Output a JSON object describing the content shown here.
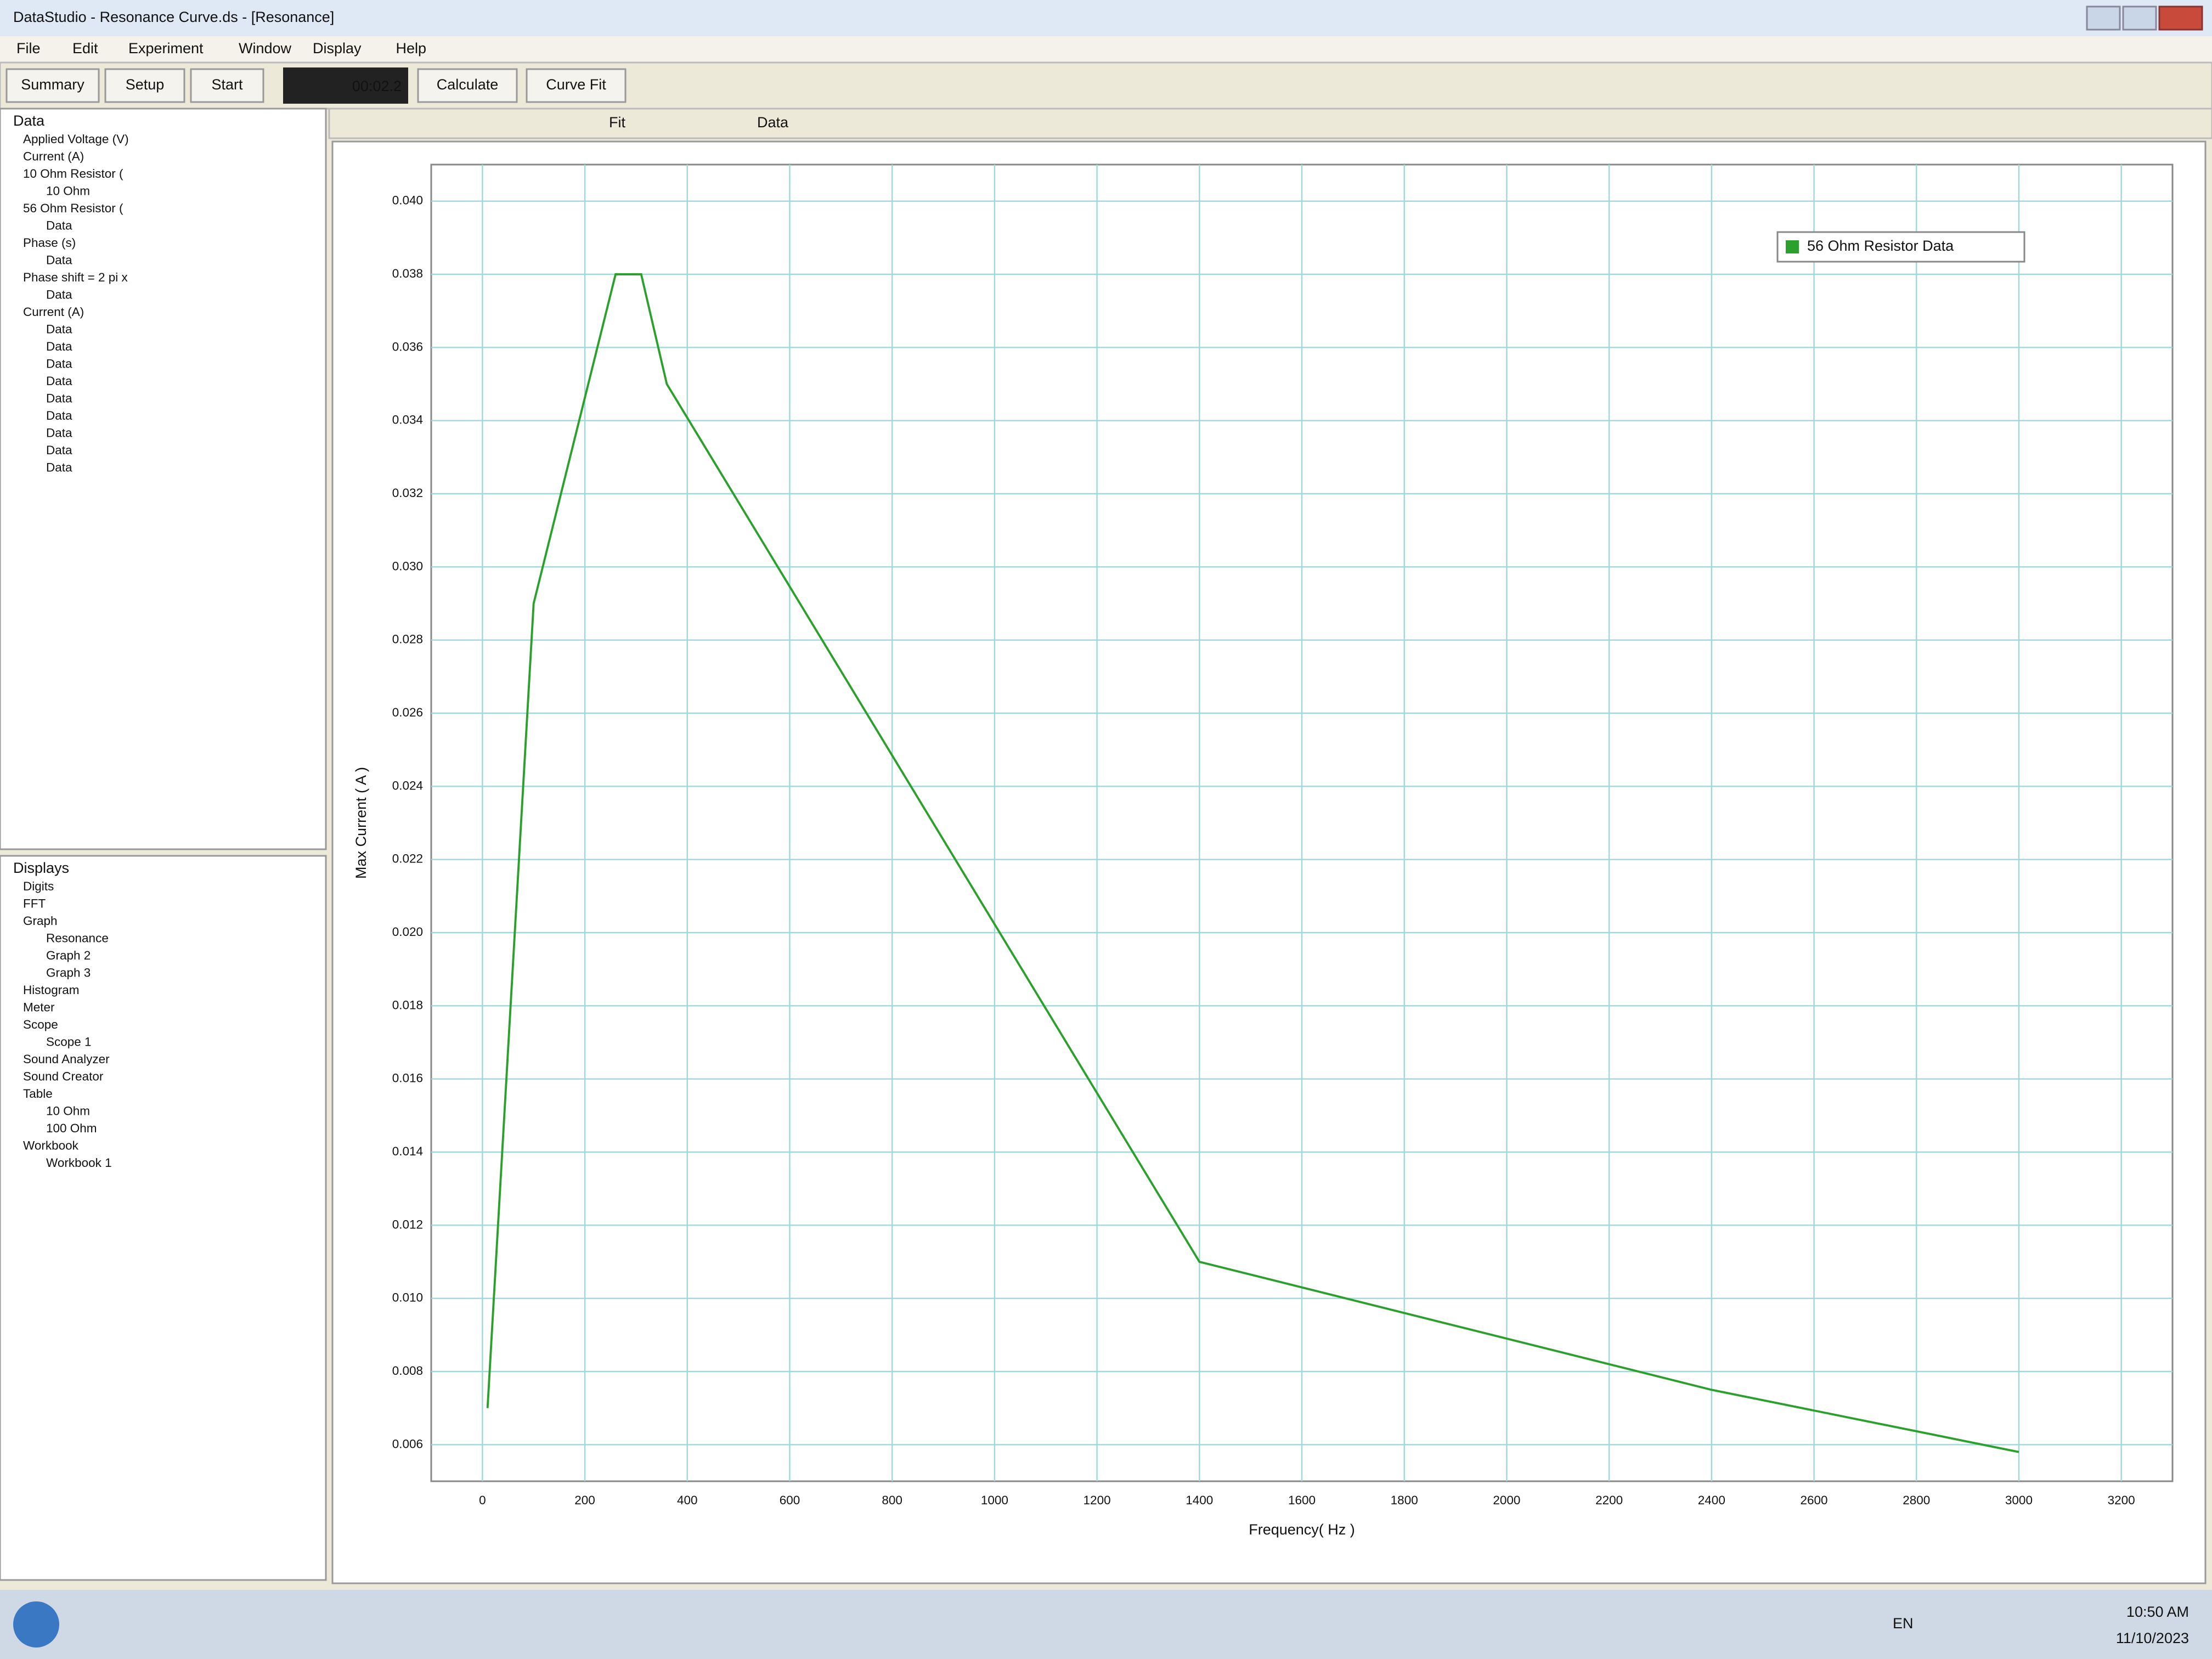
{
  "window": {
    "title": "DataStudio - Resonance Curve.ds - [Resonance]"
  },
  "menu": [
    "File",
    "Edit",
    "Experiment",
    "Window",
    "Display",
    "Help"
  ],
  "toolbar": {
    "summary": "Summary",
    "setup": "Setup",
    "start": "Start",
    "timer": "00:02.2",
    "calculate": "Calculate",
    "curve_fit": "Curve Fit"
  },
  "graph_toolbar": {
    "fit": "Fit",
    "data": "Data"
  },
  "data_tree": {
    "header": "Data",
    "items": [
      {
        "label": "Applied Voltage (V)",
        "children": []
      },
      {
        "label": "Current (A)",
        "children": []
      },
      {
        "label": "10 Ohm Resistor (",
        "children": [
          "10 Ohm"
        ]
      },
      {
        "label": "56 Ohm Resistor (",
        "children": [
          "Data"
        ]
      },
      {
        "label": "Phase (s)",
        "children": [
          "Data"
        ]
      },
      {
        "label": "Phase shift = 2 pi x",
        "children": [
          "Data"
        ]
      },
      {
        "label": "Current (A)",
        "children": [
          "Data",
          "Data",
          "Data",
          "Data",
          "Data",
          "Data",
          "Data",
          "Data",
          "Data"
        ]
      }
    ]
  },
  "displays_tree": {
    "header": "Displays",
    "items": [
      {
        "label": "Digits",
        "children": []
      },
      {
        "label": "FFT",
        "children": []
      },
      {
        "label": "Graph",
        "children": [
          "Resonance",
          "Graph 2",
          "Graph 3"
        ]
      },
      {
        "label": "Histogram",
        "children": []
      },
      {
        "label": "Meter",
        "children": []
      },
      {
        "label": "Scope",
        "children": [
          "Scope 1"
        ]
      },
      {
        "label": "Sound Analyzer",
        "children": []
      },
      {
        "label": "Sound Creator",
        "children": []
      },
      {
        "label": "Table",
        "children": [
          "10 Ohm",
          "100 Ohm"
        ]
      },
      {
        "label": "Workbook",
        "children": [
          "Workbook 1"
        ]
      }
    ]
  },
  "chart_data": {
    "type": "line",
    "x_label": "Frequency( Hz )",
    "y_label": "Max Current ( A )",
    "x": [
      10,
      100,
      260,
      310,
      360,
      1400,
      2400,
      3000
    ],
    "series": [
      {
        "name": "56 Ohm Resistor Data",
        "color": "#2ca02c",
        "values": [
          0.007,
          0.029,
          0.038,
          0.038,
          0.035,
          0.011,
          0.0075,
          0.0058
        ]
      }
    ],
    "xlim": [
      -100,
      3300
    ],
    "xticks": [
      0,
      200,
      400,
      600,
      800,
      1000,
      1200,
      1400,
      1600,
      1800,
      2000,
      2200,
      2400,
      2600,
      2800,
      3000,
      3200
    ],
    "ylim": [
      0.005,
      0.041
    ],
    "yticks": [
      0.006,
      0.008,
      {
        "value": 0.01,
        "label": "0.010"
      },
      0.012,
      0.014,
      0.016,
      0.018,
      {
        "value": 0.02,
        "label": "0.020"
      },
      0.022,
      0.024,
      0.026,
      0.028,
      {
        "value": 0.03,
        "label": "0.030"
      },
      0.032,
      0.034,
      0.036,
      0.038,
      {
        "value": 0.04,
        "label": "0.040"
      }
    ],
    "grid": true,
    "legend": "upper right"
  },
  "taskbar": {
    "language": "EN",
    "time": "10:50 AM",
    "date": "11/10/2023"
  }
}
